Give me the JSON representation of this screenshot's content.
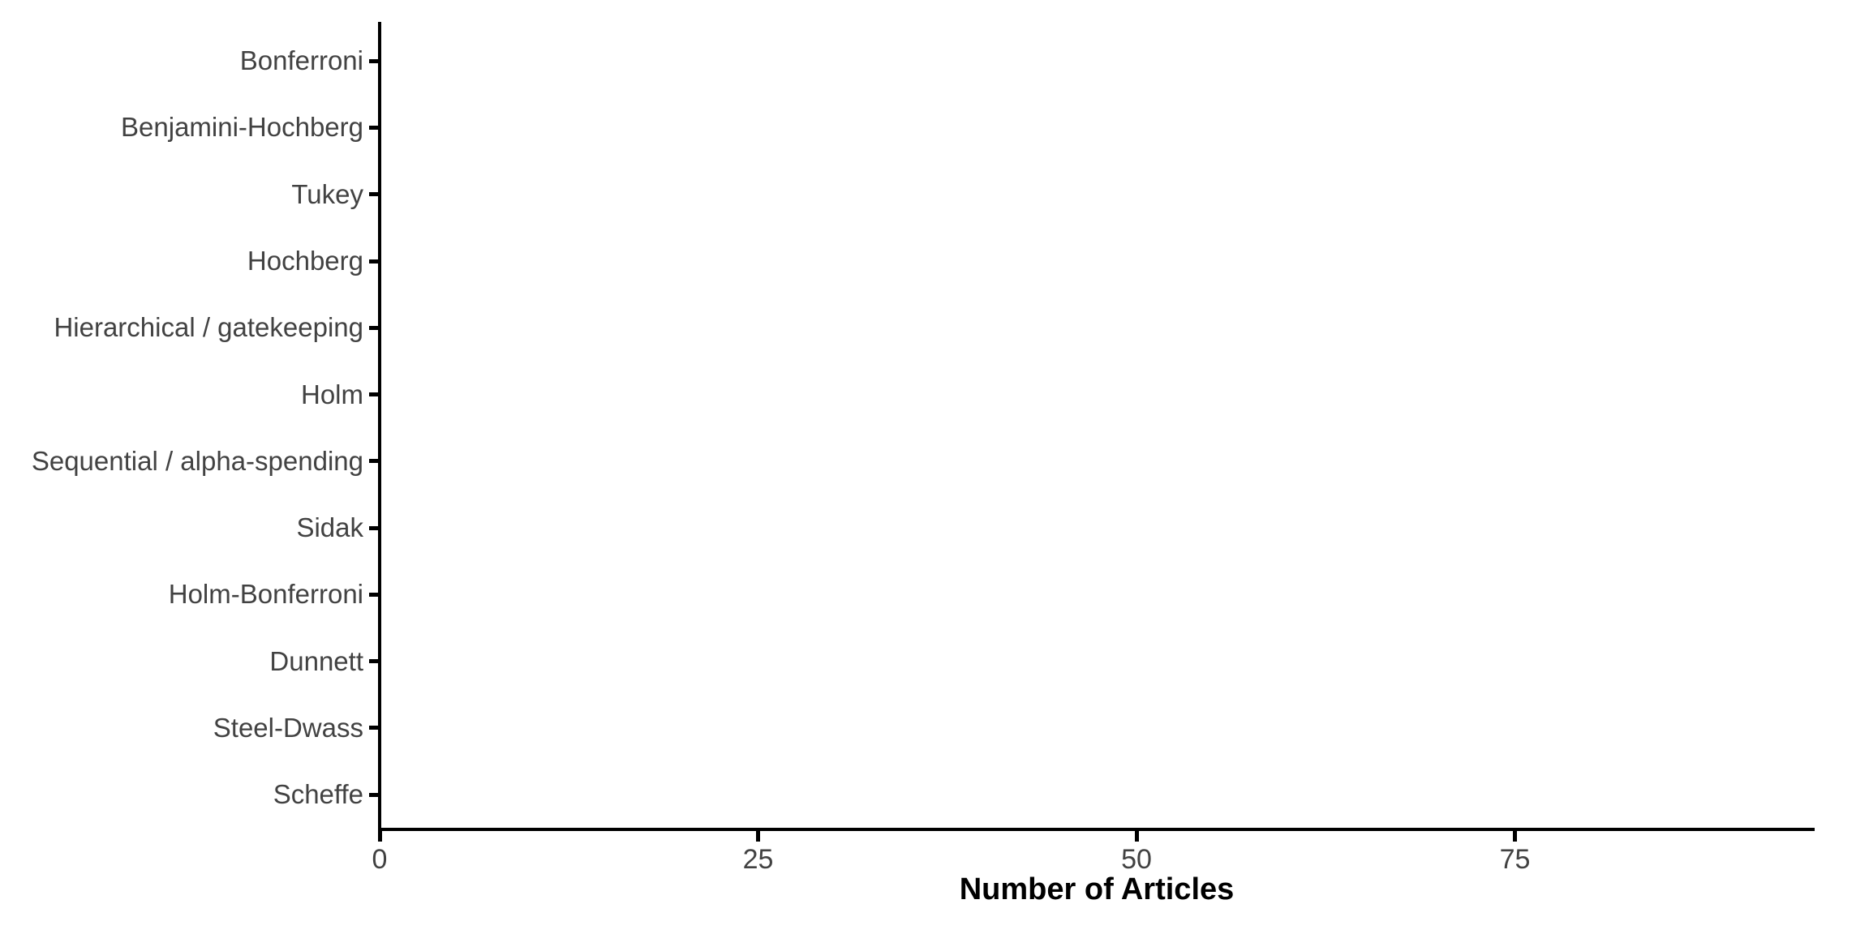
{
  "chart_data": {
    "type": "bar",
    "orientation": "horizontal",
    "title": "",
    "xlabel": "Number of Articles",
    "ylabel": "",
    "categories": [
      "Bonferroni",
      "Benjamini-Hochberg",
      "Tukey",
      "Hochberg",
      "Hierarchical / gatekeeping",
      "Holm",
      "Sequential / alpha-spending",
      "Sidak",
      "Holm-Bonferroni",
      "Dunnett",
      "Steel-Dwass",
      "Scheffe"
    ],
    "series": [
      {
        "name": "Number of Articles",
        "values": [
          null,
          null,
          null,
          null,
          null,
          null,
          null,
          null,
          null,
          null,
          null,
          null
        ]
      }
    ],
    "bars_visible": false,
    "x_ticks": [
      0,
      25,
      50,
      75
    ],
    "xlim": [
      0,
      95
    ],
    "grid": false,
    "legend": null,
    "colors": {
      "axis_line": "#000000",
      "tick_mark": "#000000",
      "axis_text": "#424242",
      "axis_title": "#000000",
      "plot_background": "#ffffff"
    }
  }
}
